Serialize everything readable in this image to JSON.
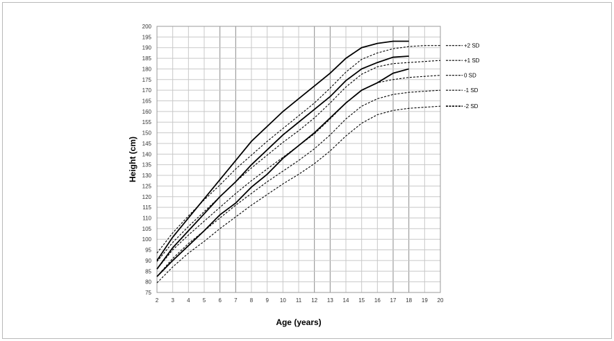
{
  "chart_data": {
    "type": "line",
    "title": "",
    "xlabel": "Age (years)",
    "ylabel": "Height (cm)",
    "xlim": [
      2,
      20
    ],
    "ylim": [
      75,
      200
    ],
    "xticks": [
      2,
      3,
      4,
      5,
      6,
      7,
      8,
      9,
      10,
      11,
      12,
      13,
      14,
      15,
      16,
      17,
      18,
      19,
      20
    ],
    "yticks": [
      75,
      80,
      85,
      90,
      95,
      100,
      105,
      110,
      115,
      120,
      125,
      130,
      135,
      140,
      145,
      150,
      155,
      160,
      165,
      170,
      175,
      180,
      185,
      190,
      195,
      200
    ],
    "grid": true,
    "reference_series": [
      {
        "name": "+2 SD",
        "style": "dashed",
        "x": [
          2,
          3,
          4,
          5,
          6,
          7,
          8,
          9,
          10,
          11,
          12,
          13,
          14,
          15,
          16,
          17,
          18,
          19,
          20
        ],
        "y": [
          93.5,
          103,
          111,
          118.5,
          125.5,
          133,
          139.5,
          146,
          152,
          158,
          164,
          171,
          178.5,
          184.5,
          187.5,
          189.5,
          190.5,
          191,
          191
        ]
      },
      {
        "name": "+1 SD",
        "style": "dashed",
        "x": [
          2,
          3,
          4,
          5,
          6,
          7,
          8,
          9,
          10,
          11,
          12,
          13,
          14,
          15,
          16,
          17,
          18,
          19,
          20
        ],
        "y": [
          89.5,
          98.5,
          106,
          113,
          120,
          127,
          133.5,
          139.5,
          145.5,
          151,
          157,
          164,
          171.5,
          177.5,
          181,
          182.5,
          183,
          183.5,
          184
        ]
      },
      {
        "name": "0 SD",
        "style": "dashed",
        "x": [
          2,
          3,
          4,
          5,
          6,
          7,
          8,
          9,
          10,
          11,
          12,
          13,
          14,
          15,
          16,
          17,
          18,
          19,
          20
        ],
        "y": [
          86,
          95,
          102,
          108.5,
          115,
          121.5,
          127.5,
          133,
          138.5,
          144,
          149.5,
          156.5,
          164,
          170,
          173.5,
          175,
          176,
          176.5,
          177
        ]
      },
      {
        "name": "-1 SD",
        "style": "dashed",
        "x": [
          2,
          3,
          4,
          5,
          6,
          7,
          8,
          9,
          10,
          11,
          12,
          13,
          14,
          15,
          16,
          17,
          18,
          19,
          20
        ],
        "y": [
          82.5,
          91,
          98,
          104,
          110,
          116,
          121.5,
          127,
          132,
          137,
          142.5,
          149,
          156.5,
          162.5,
          166,
          168,
          169,
          169.5,
          170
        ]
      },
      {
        "name": "-2 SD",
        "style": "dashed",
        "x": [
          2,
          3,
          4,
          5,
          6,
          7,
          8,
          9,
          10,
          11,
          12,
          13,
          14,
          15,
          16,
          17,
          18,
          19,
          20
        ],
        "y": [
          79.5,
          87,
          93.5,
          99,
          105,
          110.5,
          116,
          121,
          126,
          130.5,
          135.5,
          141.5,
          148.5,
          154.5,
          158.5,
          160.5,
          161.5,
          162,
          162.5
        ]
      }
    ],
    "series": [
      {
        "style": "solid",
        "x": [
          2,
          3,
          4,
          5,
          6,
          7,
          8,
          9,
          10,
          11,
          12,
          13,
          14,
          15,
          16,
          17,
          18
        ],
        "y": [
          90,
          101,
          110,
          119,
          128,
          137,
          146,
          153,
          160,
          166,
          172,
          178,
          185,
          190,
          192,
          193,
          193
        ]
      },
      {
        "style": "solid",
        "x": [
          2,
          3,
          4,
          5,
          6,
          7,
          8,
          9,
          10,
          11,
          12,
          13,
          14,
          15,
          16,
          17,
          18
        ],
        "y": [
          86,
          96,
          104,
          112,
          120,
          127,
          135,
          142,
          149,
          155,
          161,
          167,
          174.5,
          180,
          183,
          185.5,
          186
        ]
      },
      {
        "style": "solid",
        "x": [
          2,
          3,
          4,
          5,
          6,
          7,
          8,
          9,
          10,
          11,
          12,
          13,
          14,
          15,
          16,
          17,
          18
        ],
        "y": [
          82.5,
          90,
          97,
          104,
          111.5,
          117,
          124.5,
          130.5,
          138,
          144,
          150,
          157,
          164,
          170,
          173.5,
          178,
          180
        ]
      }
    ],
    "legend_placement": "right (line-end labels)"
  }
}
